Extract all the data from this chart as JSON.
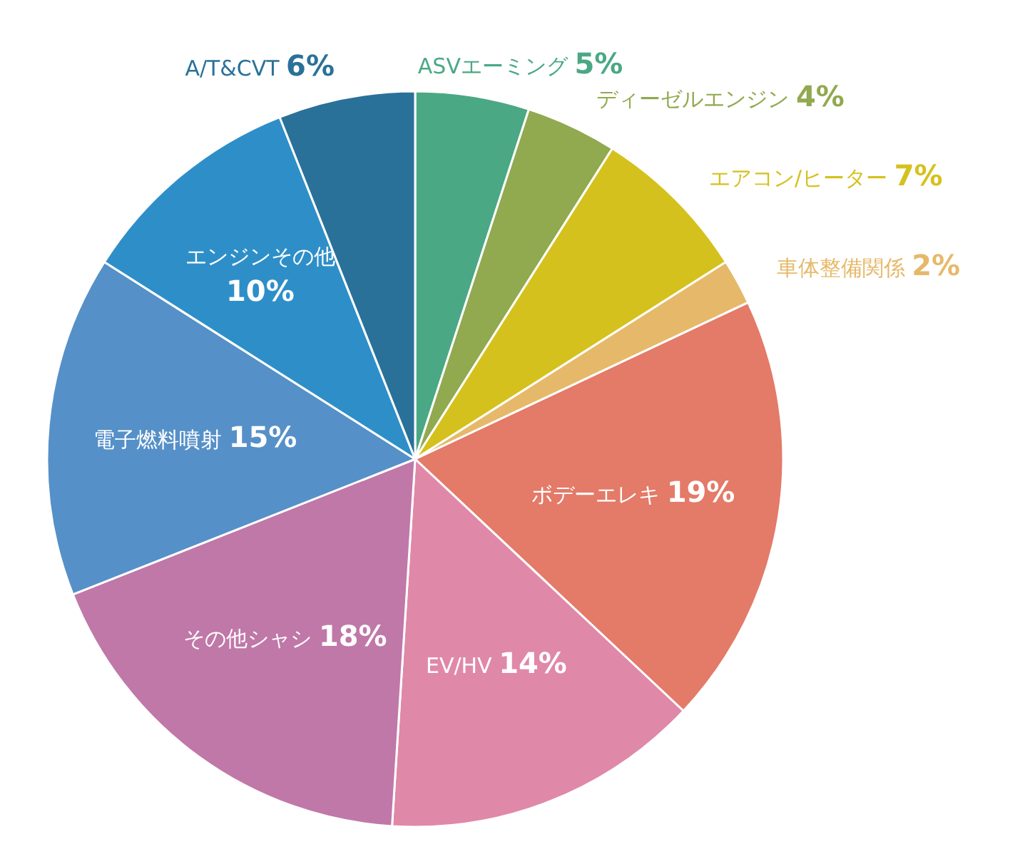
{
  "chart_data": {
    "type": "pie",
    "categories": [
      "ASVエーミング",
      "ディーゼルエンジン",
      "エアコン/ヒーター",
      "車体整備関係",
      "ボデーエレキ",
      "EV/HV",
      "その他シャシ",
      "電子燃料噴射",
      "エンジンその他",
      "A/T&CVT"
    ],
    "values": [
      5,
      4,
      7,
      2,
      19,
      14,
      18,
      15,
      10,
      6
    ],
    "value_labels": [
      "5%",
      "4%",
      "7%",
      "2%",
      "19%",
      "14%",
      "18%",
      "15%",
      "10%",
      "6%"
    ],
    "colors": [
      "#4aa884",
      "#91a94f",
      "#d5c11d",
      "#e6b96a",
      "#e47a68",
      "#e088a8",
      "#c078a8",
      "#5690c8",
      "#2e8fc8",
      "#2a7199"
    ]
  }
}
